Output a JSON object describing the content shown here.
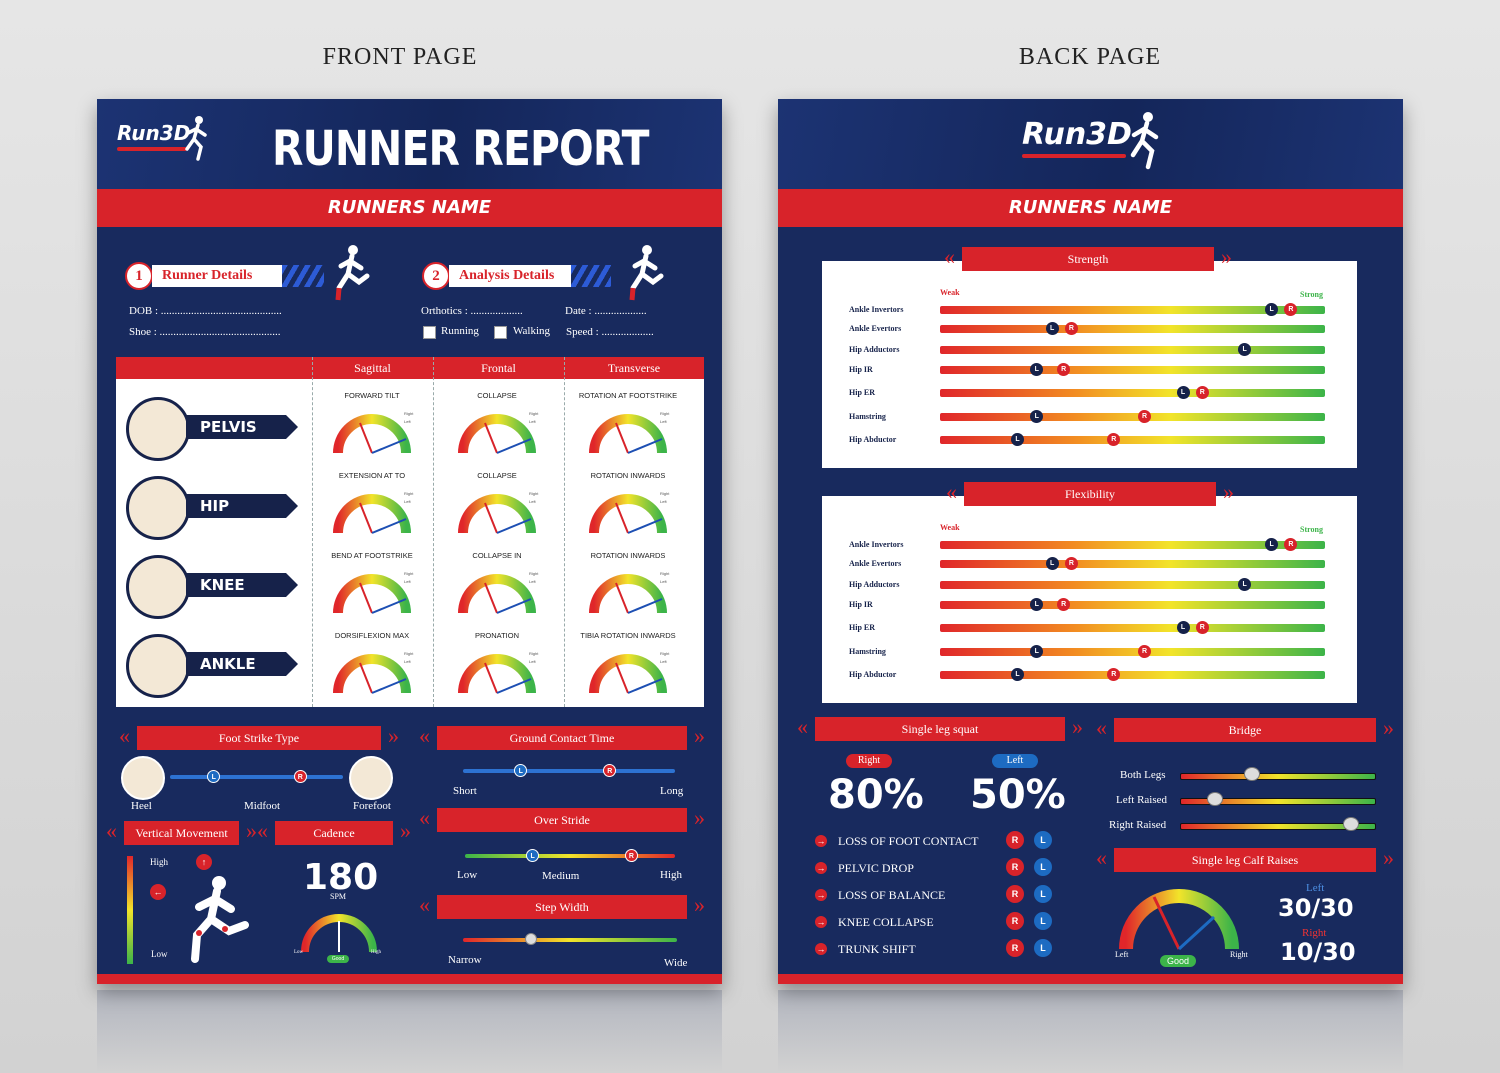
{
  "captions": {
    "front": "FRONT PAGE",
    "back": "BACK PAGE"
  },
  "brand": {
    "logo": "Run3D"
  },
  "front": {
    "title": "RUNNER REPORT",
    "runner_name": "RUNNERS NAME",
    "runner_details": {
      "num": "1",
      "label": "Runner Details",
      "dob": "DOB : ............................................",
      "shoe": "Shoe : ............................................"
    },
    "analysis_details": {
      "num": "2",
      "label": "Analysis Details",
      "orthotics": "Orthotics : ...................",
      "date": "Date : ...................",
      "running": "Running",
      "walking": "Walking",
      "speed": "Speed : ..................."
    },
    "table": {
      "headers": [
        "Sagittal",
        "Frontal",
        "Transverse"
      ],
      "joints": [
        "PELVIS",
        "HIP",
        "KNEE",
        "ANKLE"
      ],
      "cells": [
        [
          "FORWARD TILT",
          "COLLAPSE",
          "ROTATION AT FOOTSTRIKE"
        ],
        [
          "EXTENSION AT TO",
          "COLLAPSE",
          "ROTATION INWARDS"
        ],
        [
          "BEND AT FOOTSTRIKE",
          "COLLAPSE IN",
          "ROTATION INWARDS"
        ],
        [
          "DORSIFLEXION MAX",
          "PRONATION",
          "TIBIA ROTATION INWARDS"
        ]
      ],
      "legend_right": "Right",
      "legend_left": "Left"
    },
    "foot_strike": {
      "title": "Foot Strike Type",
      "heel": "Heel",
      "midfoot": "Midfoot",
      "forefoot": "Forefoot",
      "left": 0.25,
      "right": 0.75
    },
    "ground_contact": {
      "title": "Ground Contact Time",
      "short": "Short",
      "long": "Long",
      "left": 0.27,
      "right": 0.69
    },
    "over_stride": {
      "title": "Over Stride",
      "low": "Low",
      "medium": "Medium",
      "high": "High",
      "left": 0.32,
      "right": 0.79
    },
    "step_width": {
      "title": "Step Width",
      "narrow": "Narrow",
      "wide": "Wide",
      "pos": 0.32
    },
    "vertical": {
      "title": "Vertical Movement",
      "high": "High",
      "low": "Low"
    },
    "cadence": {
      "title": "Cadence",
      "value": "180",
      "unit": "SPM",
      "low": "Low",
      "good": "Good",
      "high": "High"
    },
    "marker_l": "L",
    "marker_r": "R"
  },
  "back": {
    "runner_name": "RUNNERS NAME",
    "weak": "Weak",
    "strong": "Strong",
    "strength": {
      "title": "Strength",
      "rows": [
        {
          "name": "Ankle Invertors",
          "l": 0.86,
          "r": 0.91
        },
        {
          "name": "Ankle Evertors",
          "l": 0.29,
          "r": 0.34
        },
        {
          "name": "Hip Adductors",
          "l": 0.79,
          "r": null
        },
        {
          "name": "Hip IR",
          "l": 0.25,
          "r": 0.32
        },
        {
          "name": "Hip ER",
          "l": 0.63,
          "r": 0.68
        },
        {
          "name": "Hamstring",
          "l": 0.25,
          "r": 0.53
        },
        {
          "name": "Hip Abductor",
          "l": 0.2,
          "r": 0.45
        }
      ]
    },
    "flexibility": {
      "title": "Flexibility",
      "rows": [
        {
          "name": "Ankle Invertors",
          "l": 0.86,
          "r": 0.91
        },
        {
          "name": "Ankle Evertors",
          "l": 0.29,
          "r": 0.34
        },
        {
          "name": "Hip Adductors",
          "l": 0.79,
          "r": null
        },
        {
          "name": "Hip IR",
          "l": 0.25,
          "r": 0.32
        },
        {
          "name": "Hip ER",
          "l": 0.63,
          "r": 0.68
        },
        {
          "name": "Hamstring",
          "l": 0.25,
          "r": 0.53
        },
        {
          "name": "Hip Abductor",
          "l": 0.2,
          "r": 0.45
        }
      ]
    },
    "squat": {
      "title": "Single leg squat",
      "right_label": "Right",
      "left_label": "Left",
      "right_val": "80%",
      "left_val": "50%",
      "items": [
        "LOSS OF FOOT CONTACT",
        "PELVIC DROP",
        "LOSS OF BALANCE",
        "KNEE COLLAPSE",
        "TRUNK SHIFT"
      ]
    },
    "bridge": {
      "title": "Bridge",
      "rows": [
        {
          "name": "Both Legs",
          "pos": 0.37
        },
        {
          "name": "Left Raised",
          "pos": 0.18
        },
        {
          "name": "Right Raised",
          "pos": 0.88
        }
      ]
    },
    "calf": {
      "title": "Single leg Calf Raises",
      "left_label": "Left",
      "left_val": "30/30",
      "right_label": "Right",
      "right_val": "10/30",
      "g_left": "Left",
      "g_good": "Good",
      "g_right": "Right"
    }
  }
}
